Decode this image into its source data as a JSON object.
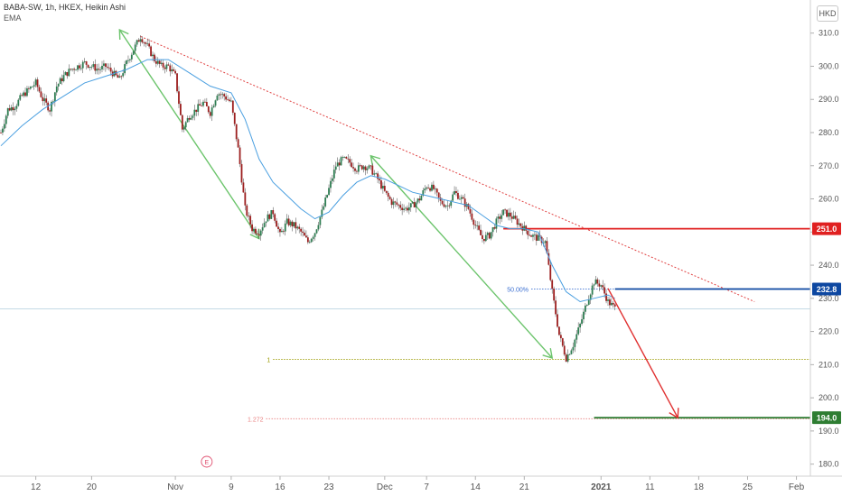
{
  "header": {
    "title": "BABA-SW, 1h, HKEX, Heikin Ashi",
    "indicator": "EMA",
    "currency": "HKD"
  },
  "chart_data": {
    "type": "candlestick",
    "title": "BABA-SW, 1h, HKEX, Heikin Ashi",
    "ylim": [
      178,
      314
    ],
    "yticks": [
      180,
      190,
      200,
      210,
      220,
      230,
      240,
      250,
      260,
      270,
      280,
      290,
      300,
      310
    ],
    "ytick_labels": [
      "180.0",
      "190.0",
      "200.0",
      "210.0",
      "220.0",
      "230.0",
      "240.0",
      "250.0",
      "260.0",
      "270.0",
      "280.0",
      "290.0",
      "300.0",
      "310.0"
    ],
    "x_labels": [
      {
        "label": "12",
        "t": 7
      },
      {
        "label": "20",
        "t": 15
      },
      {
        "label": "Nov",
        "t": 27
      },
      {
        "label": "9",
        "t": 35
      },
      {
        "label": "16",
        "t": 42
      },
      {
        "label": "23",
        "t": 49
      },
      {
        "label": "Dec",
        "t": 57
      },
      {
        "label": "7",
        "t": 63
      },
      {
        "label": "14",
        "t": 70
      },
      {
        "label": "21",
        "t": 77
      },
      {
        "label": "2021",
        "t": 88
      },
      {
        "label": "11",
        "t": 95
      },
      {
        "label": "18",
        "t": 102
      },
      {
        "label": "25",
        "t": 109
      },
      {
        "label": "Feb",
        "t": 116
      }
    ],
    "xlim": [
      2,
      118
    ],
    "last_price": 226.8,
    "price_path": [
      [
        2,
        280
      ],
      [
        3,
        287
      ],
      [
        4,
        288
      ],
      [
        5,
        291
      ],
      [
        6,
        293
      ],
      [
        7,
        295
      ],
      [
        8,
        290
      ],
      [
        9,
        287
      ],
      [
        10,
        294
      ],
      [
        11,
        297
      ],
      [
        12,
        299
      ],
      [
        13,
        300
      ],
      [
        14,
        301
      ],
      [
        15,
        300
      ],
      [
        16,
        299
      ],
      [
        17,
        300
      ],
      [
        18,
        298
      ],
      [
        19,
        296
      ],
      [
        20,
        301
      ],
      [
        21,
        305
      ],
      [
        22,
        309
      ],
      [
        23,
        306
      ],
      [
        24,
        302
      ],
      [
        25,
        300
      ],
      [
        26,
        300
      ],
      [
        27,
        297
      ],
      [
        28,
        281
      ],
      [
        29,
        285
      ],
      [
        30,
        287
      ],
      [
        31,
        289
      ],
      [
        32,
        286
      ],
      [
        33,
        292
      ],
      [
        34,
        291
      ],
      [
        35,
        289
      ],
      [
        36,
        275
      ],
      [
        37,
        257
      ],
      [
        38,
        251
      ],
      [
        39,
        250
      ],
      [
        40,
        254
      ],
      [
        41,
        256
      ],
      [
        42,
        249
      ],
      [
        43,
        253
      ],
      [
        44,
        252
      ],
      [
        45,
        250
      ],
      [
        46,
        247
      ],
      [
        47,
        250
      ],
      [
        48,
        256
      ],
      [
        49,
        263
      ],
      [
        50,
        270
      ],
      [
        51,
        272
      ],
      [
        52,
        271
      ],
      [
        53,
        269
      ],
      [
        54,
        270
      ],
      [
        55,
        269
      ],
      [
        56,
        266
      ],
      [
        57,
        262
      ],
      [
        58,
        259
      ],
      [
        59,
        258
      ],
      [
        60,
        257
      ],
      [
        61,
        258
      ],
      [
        62,
        260
      ],
      [
        63,
        264
      ],
      [
        64,
        263
      ],
      [
        65,
        259
      ],
      [
        66,
        258
      ],
      [
        67,
        262
      ],
      [
        68,
        260
      ],
      [
        69,
        257
      ],
      [
        70,
        252
      ],
      [
        71,
        248
      ],
      [
        72,
        249
      ],
      [
        73,
        253
      ],
      [
        74,
        256
      ],
      [
        75,
        255
      ],
      [
        76,
        253
      ],
      [
        77,
        251
      ],
      [
        78,
        249
      ],
      [
        79,
        248
      ],
      [
        80,
        247
      ],
      [
        81,
        232
      ],
      [
        82,
        219
      ],
      [
        83,
        212
      ],
      [
        84,
        216
      ],
      [
        85,
        222
      ],
      [
        86,
        229
      ],
      [
        87,
        235
      ],
      [
        88,
        234
      ],
      [
        89,
        229
      ],
      [
        90,
        227
      ]
    ],
    "ema_path": [
      [
        2,
        276
      ],
      [
        5,
        282
      ],
      [
        8,
        287
      ],
      [
        11,
        291
      ],
      [
        14,
        295
      ],
      [
        17,
        297
      ],
      [
        20,
        299
      ],
      [
        23,
        302
      ],
      [
        26,
        302
      ],
      [
        29,
        298
      ],
      [
        32,
        294
      ],
      [
        35,
        292
      ],
      [
        37,
        284
      ],
      [
        39,
        272
      ],
      [
        41,
        265
      ],
      [
        43,
        261
      ],
      [
        45,
        257
      ],
      [
        47,
        254
      ],
      [
        49,
        256
      ],
      [
        51,
        261
      ],
      [
        53,
        265
      ],
      [
        55,
        267
      ],
      [
        57,
        266
      ],
      [
        59,
        264
      ],
      [
        61,
        262
      ],
      [
        63,
        261
      ],
      [
        65,
        260
      ],
      [
        67,
        259
      ],
      [
        69,
        258
      ],
      [
        71,
        255
      ],
      [
        73,
        252
      ],
      [
        75,
        251
      ],
      [
        77,
        251
      ],
      [
        79,
        250
      ],
      [
        81,
        240
      ],
      [
        83,
        232
      ],
      [
        85,
        229
      ],
      [
        87,
        230
      ],
      [
        89,
        231
      ],
      [
        90,
        230
      ]
    ],
    "annotations": {
      "trendline": {
        "from": [
          22,
          309
        ],
        "to": [
          110,
          229
        ]
      },
      "impulse_arrows": [
        {
          "from": [
            19,
            311
          ],
          "to": [
            39,
            248
          ]
        },
        {
          "from": [
            55,
            273
          ],
          "to": [
            81,
            212
          ]
        }
      ],
      "projection_arrow": {
        "from": [
          89,
          233
        ],
        "to": [
          99,
          194
        ]
      },
      "fib_levels": [
        {
          "label": "50.00%",
          "value": 232.8,
          "t_start": 78,
          "color": "#3b6fd1"
        },
        {
          "label": "1",
          "value": 211.6,
          "t_start": 41,
          "color": "#9a9a00"
        },
        {
          "label": "1.272",
          "value": 193.7,
          "t_start": 40,
          "color": "#e88080"
        }
      ],
      "levels": [
        {
          "value": 251.0,
          "label": "251.0",
          "t_start": 74,
          "color": "#e02020"
        },
        {
          "value": 232.8,
          "label": "232.8",
          "t_start": 90,
          "color": "#0d47a1"
        },
        {
          "value": 194.0,
          "label": "194.0",
          "t_start": 87,
          "color": "#2e7d32"
        }
      ],
      "event_marker": {
        "label": "E",
        "t": 31.5
      }
    }
  }
}
